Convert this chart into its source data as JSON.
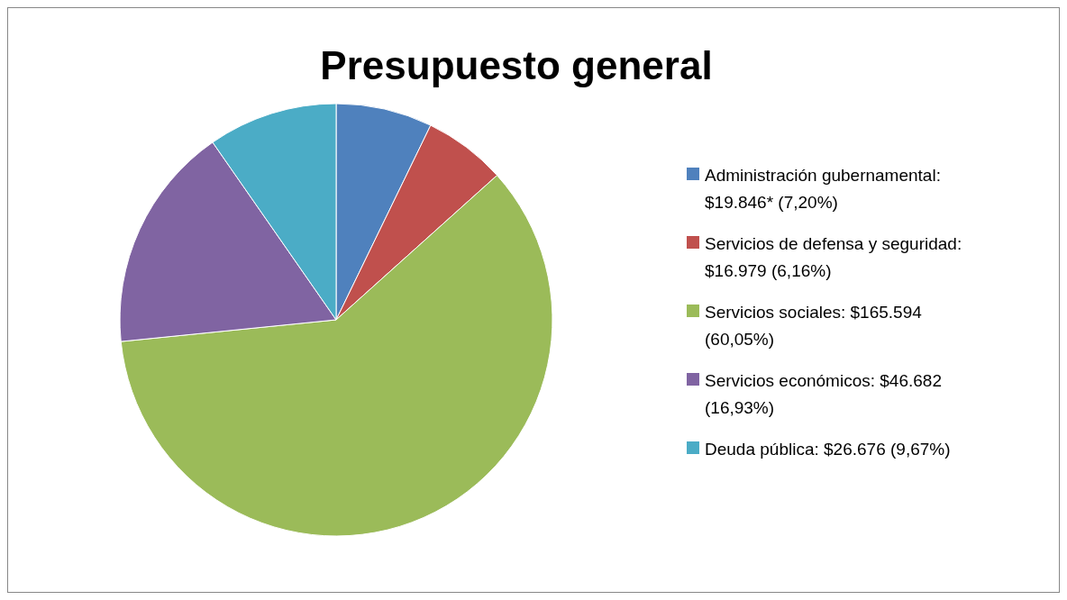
{
  "chart_data": {
    "type": "pie",
    "title": "Presupuesto general",
    "categories": [
      "Administración gubernamental: $19.846* (7,20%)",
      "Servicios de defensa y seguridad: $16.979 (6,16%)",
      "Servicios sociales: $165.594 (60,05%)",
      "Servicios económicos: $46.682 (16,93%)",
      "Deuda pública: $26.676 (9,67%)"
    ],
    "values": [
      19846,
      16979,
      165594,
      46682,
      26676
    ],
    "colors": [
      "#4f81bd",
      "#c0504d",
      "#9bbb59",
      "#8064a2",
      "#4bacc6"
    ],
    "legend": "right"
  }
}
